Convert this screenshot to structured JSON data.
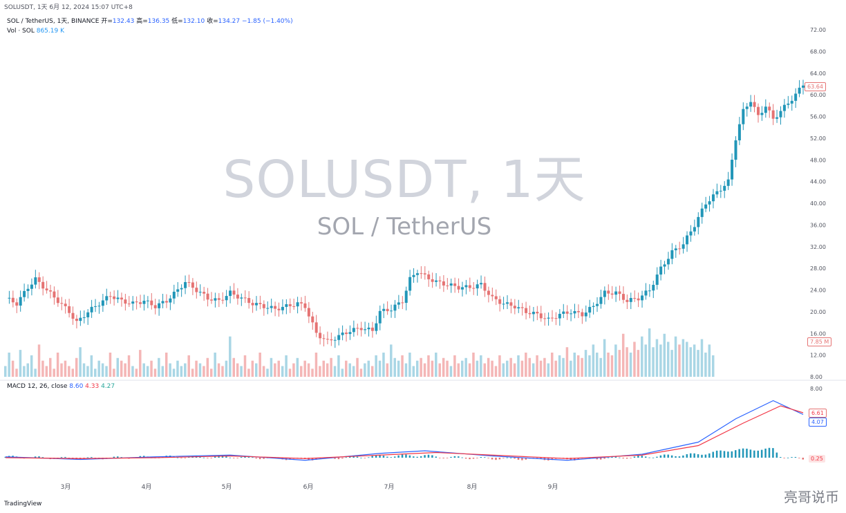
{
  "topbar": {
    "text": "SOLUSDT, 1天  6月 12, 2024 15:07 UTC+8"
  },
  "legend": {
    "symbol": "SOL / TetherUS, 1天, BINANCE",
    "open_label": "开=",
    "open": "132.43",
    "high_label": "高=",
    "high": "136.35",
    "low_label": "低=",
    "low": "132.10",
    "close_label": "收=",
    "close": "134.27",
    "change": "−1.85 (−1.40%)"
  },
  "legend2": {
    "label": "Vol · SOL",
    "value": "865.19 K"
  },
  "watermark": {
    "title": "SOLUSDT, 1天",
    "subtitle": "SOL / TetherUS"
  },
  "macd_legend": {
    "label": "MACD 12, 26, close",
    "macd": "8.60",
    "signal": "4.33",
    "hist": "4.27"
  },
  "badges": {
    "price": "63.64",
    "volume": "7.85 M",
    "macd_signal": "6.61",
    "macd_line": "4.07",
    "macd_hist": "0.25"
  },
  "footer": {
    "logo": "TradingView"
  },
  "wechat": {
    "text": "亮哥说币"
  },
  "colors": {
    "up": "#2196b8",
    "down": "#e57373",
    "vol_up": "#a9d6e5",
    "vol_down": "#f4b6b6",
    "macd": "#2962ff",
    "signal": "#f23645"
  },
  "chart_data": {
    "type": "candlestick",
    "title": "SOLUSDT, 1天",
    "x_ticks": [
      "3月",
      "4月",
      "5月",
      "6月",
      "7月",
      "8月",
      "9月",
      "",
      ""
    ],
    "y_ticks": [
      72,
      68,
      64,
      60,
      56,
      52,
      48,
      44,
      40,
      36,
      32,
      28,
      24,
      20,
      16,
      12,
      8
    ],
    "ylim": [
      8,
      72
    ],
    "price_path": [
      [
        0,
        22.5
      ],
      [
        3,
        21.5
      ],
      [
        6,
        24.5
      ],
      [
        8,
        26
      ],
      [
        11,
        24
      ],
      [
        14,
        22
      ],
      [
        17,
        20
      ],
      [
        19,
        18
      ],
      [
        22,
        20
      ],
      [
        25,
        21.5
      ],
      [
        28,
        23
      ],
      [
        31,
        22
      ],
      [
        34,
        21.5
      ],
      [
        37,
        22
      ],
      [
        40,
        21
      ],
      [
        43,
        22
      ],
      [
        46,
        24
      ],
      [
        48,
        25.5
      ],
      [
        51,
        24
      ],
      [
        54,
        22.5
      ],
      [
        57,
        22
      ],
      [
        60,
        23.5
      ],
      [
        63,
        22.5
      ],
      [
        66,
        21.5
      ],
      [
        69,
        21
      ],
      [
        72,
        20.5
      ],
      [
        75,
        21
      ],
      [
        78,
        21.5
      ],
      [
        80,
        21
      ],
      [
        83,
        16
      ],
      [
        86,
        14.5
      ],
      [
        89,
        15.5
      ],
      [
        92,
        16.5
      ],
      [
        95,
        17
      ],
      [
        98,
        16.5
      ],
      [
        100,
        20
      ],
      [
        103,
        20.5
      ],
      [
        106,
        22
      ],
      [
        108,
        26
      ],
      [
        110,
        27.5
      ],
      [
        112,
        26.5
      ],
      [
        115,
        25.5
      ],
      [
        118,
        25
      ],
      [
        121,
        24.5
      ],
      [
        124,
        24.5
      ],
      [
        127,
        25
      ],
      [
        130,
        22.5
      ],
      [
        133,
        21.5
      ],
      [
        136,
        21
      ],
      [
        139,
        20
      ],
      [
        142,
        19.5
      ],
      [
        145,
        18.5
      ],
      [
        148,
        19.5
      ],
      [
        151,
        20
      ],
      [
        154,
        19.5
      ],
      [
        157,
        21
      ],
      [
        160,
        23.5
      ],
      [
        163,
        23.5
      ],
      [
        166,
        22
      ],
      [
        169,
        22.5
      ],
      [
        172,
        24
      ],
      [
        175,
        28
      ],
      [
        178,
        31
      ],
      [
        181,
        32.5
      ],
      [
        184,
        36
      ],
      [
        187,
        40
      ],
      [
        190,
        42
      ],
      [
        193,
        44
      ],
      [
        195,
        52
      ],
      [
        197,
        57
      ],
      [
        199,
        59
      ],
      [
        201,
        56
      ],
      [
        203,
        58
      ],
      [
        205,
        55.5
      ],
      [
        207,
        57
      ],
      [
        209,
        58.5
      ],
      [
        211,
        60
      ],
      [
        213,
        62
      ]
    ],
    "volume": [
      4,
      9,
      6,
      3,
      10,
      4,
      5,
      8,
      3,
      12,
      6,
      4,
      7,
      3,
      9,
      5,
      6,
      4,
      3,
      7,
      11,
      5,
      4,
      8,
      3,
      6,
      5,
      4,
      9,
      3,
      7,
      6,
      5,
      8,
      4,
      3,
      10,
      5,
      4,
      6,
      3,
      7,
      4,
      9,
      5,
      3,
      6,
      4,
      5,
      8,
      3,
      6,
      5,
      4,
      7,
      3,
      9,
      5,
      4,
      6,
      15,
      7,
      5,
      4,
      8,
      3,
      6,
      5,
      9,
      4,
      3,
      7,
      5,
      6,
      4,
      8,
      3,
      5,
      7,
      4,
      6,
      5,
      3,
      9,
      4,
      6,
      5,
      7,
      4,
      8,
      3,
      6,
      5,
      4,
      7,
      3,
      5,
      6,
      4,
      8,
      6,
      9,
      5,
      12,
      7,
      6,
      8,
      5,
      9,
      4,
      6,
      7,
      5,
      8,
      6,
      9,
      5,
      7,
      6,
      4,
      8,
      5,
      6,
      7,
      5,
      9,
      6,
      8,
      5,
      7,
      6,
      4,
      8,
      5,
      6,
      7,
      5,
      8,
      6,
      9,
      7,
      5,
      8,
      6,
      7,
      5,
      9,
      6,
      8,
      7,
      11,
      6,
      9,
      8,
      7,
      10,
      8,
      12,
      9,
      7,
      14,
      9,
      8,
      12,
      10,
      16,
      11,
      9,
      13,
      10,
      15,
      12,
      18,
      11,
      14,
      12,
      16,
      13,
      10,
      15,
      12,
      14,
      13,
      11,
      12,
      10,
      14,
      9,
      12,
      8
    ],
    "macd_path": [
      [
        0,
        0.1
      ],
      [
        20,
        -0.2
      ],
      [
        40,
        0.1
      ],
      [
        60,
        0.3
      ],
      [
        80,
        -0.3
      ],
      [
        100,
        0.5
      ],
      [
        112,
        0.8
      ],
      [
        130,
        0.2
      ],
      [
        150,
        -0.3
      ],
      [
        170,
        0.4
      ],
      [
        185,
        1.8
      ],
      [
        195,
        4.5
      ],
      [
        205,
        6.6
      ],
      [
        213,
        5
      ]
    ],
    "signal_path": [
      [
        0,
        0
      ],
      [
        20,
        -0.1
      ],
      [
        40,
        0
      ],
      [
        60,
        0.2
      ],
      [
        80,
        -0.1
      ],
      [
        100,
        0.3
      ],
      [
        115,
        0.6
      ],
      [
        130,
        0.3
      ],
      [
        150,
        -0.1
      ],
      [
        170,
        0.3
      ],
      [
        185,
        1.4
      ],
      [
        197,
        4
      ],
      [
        207,
        6
      ],
      [
        213,
        5.2
      ]
    ]
  }
}
